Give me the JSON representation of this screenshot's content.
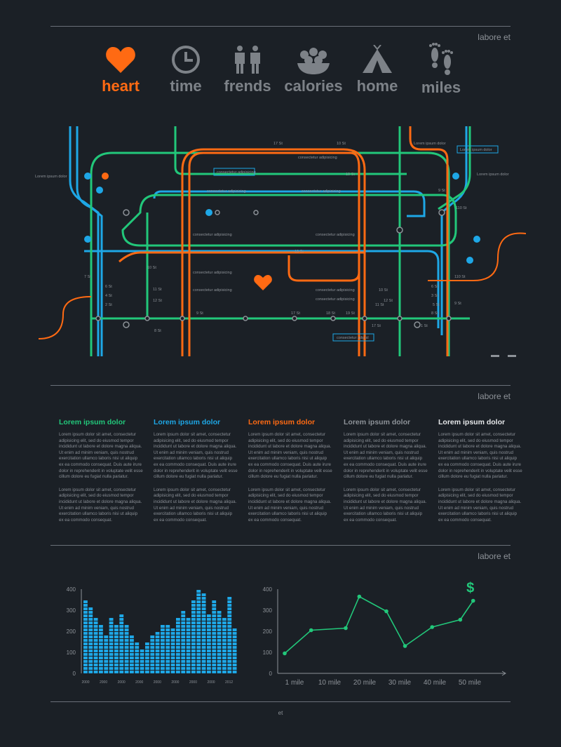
{
  "header": {
    "label": "labore et"
  },
  "nav": {
    "items": [
      {
        "label": "heart",
        "icon": "heart-icon",
        "color": "#ff6a13"
      },
      {
        "label": "time",
        "icon": "clock-icon",
        "color": "#7d8288"
      },
      {
        "label": "frends",
        "icon": "friends-icon",
        "color": "#7d8288"
      },
      {
        "label": "calories",
        "icon": "food-bowl-icon",
        "color": "#7d8288"
      },
      {
        "label": "home",
        "icon": "tent-icon",
        "color": "#7d8288"
      },
      {
        "label": "miles",
        "icon": "footprints-icon",
        "color": "#7d8288"
      }
    ]
  },
  "map": {
    "colors": {
      "blue": "#1ea7e6",
      "green": "#22c77a",
      "orange": "#ff6a13",
      "label": "#8d9298"
    },
    "boxes": [
      "Lorem ipsum dolor",
      "consectetur adipisicing",
      "consectetur adipisl"
    ],
    "labels": {
      "top_left": "Lorem ipsum dolor",
      "top_right": "Lorem ipsum dolor",
      "far_left": "Lorem ipsum dolor",
      "far_right": "Lorem ipsum dolor",
      "ca1": "consectetur adipisicing",
      "ca2": "consectetur adipisicing",
      "ca3": "consectetur adipisicing",
      "ca4": "consectetur adipisicing",
      "ca5": "consectetur adipisicing",
      "ca6": "consectetur adipisicing",
      "ca7": "consectetur adipisicing",
      "ca8": "consectetur adipisicing",
      "ca9": "consectetur adipisicing",
      "st10": "10 St",
      "st11": "11 St",
      "st12": "12 St",
      "st17": "17 St",
      "st18": "18 St",
      "st19": "19 St",
      "st9": "9 St",
      "st8": "8 St",
      "st7": "7 St",
      "st6": "6 St",
      "st5": "5 St",
      "st4": "4 St",
      "st3": "3 St",
      "st2": "2 St",
      "st1": "1 St",
      "st110": "110 St"
    }
  },
  "section2": {
    "label": "labore et",
    "columns": [
      {
        "title": "Lorem ipsum dolor",
        "color": "#22c77a",
        "p1": "Lorem ipsum dolor sit amet, consectetur adipisicing elit, sed do eiusmod tempor incididunt ut labore et dolore magna aliqua. Ut enim ad minim veniam, quis nostrud exercitation ullamco laboris nisi ut aliquip ex ea commodo consequat. Duis aute irure dolor in reprehenderit in voluptate velit esse cillum dolore eu fugiat nulla pariatur.",
        "p2": "Lorem ipsum dolor sit amet, consectetur adipisicing elit, sed do eiusmod tempor incididunt ut labore et dolore magna aliqua. Ut enim ad minim veniam, quis nostrud exercitation ullamco laboris nisi ut aliquip ex ea commodo consequat."
      },
      {
        "title": "Lorem ipsum dolor",
        "color": "#1ea7e6",
        "p1": "Lorem ipsum dolor sit amet, consectetur adipisicing elit, sed do eiusmod tempor incididunt ut labore et dolore magna aliqua. Ut enim ad minim veniam, quis nostrud exercitation ullamco laboris nisi ut aliquip ex ea commodo consequat. Duis aute irure dolor in reprehenderit in voluptate velit esse cillum dolore eu fugiat nulla pariatur.",
        "p2": "Lorem ipsum dolor sit amet, consectetur adipisicing elit, sed do eiusmod tempor incididunt ut labore et dolore magna aliqua. Ut enim ad minim veniam, quis nostrud exercitation ullamco laboris nisi ut aliquip ex ea commodo consequat."
      },
      {
        "title": "Lorem ipsum dolor",
        "color": "#ff6a13",
        "p1": "Lorem ipsum dolor sit amet, consectetur adipisicing elit, sed do eiusmod tempor incididunt ut labore et dolore magna aliqua. Ut enim ad minim veniam, quis nostrud exercitation ullamco laboris nisi ut aliquip ex ea commodo consequat. Duis aute irure dolor in reprehenderit in voluptate velit esse cillum dolore eu fugiat nulla pariatur.",
        "p2": "Lorem ipsum dolor sit amet, consectetur adipisicing elit, sed do eiusmod tempor incididunt ut labore et dolore magna aliqua. Ut enim ad minim veniam, quis nostrud exercitation ullamco laboris nisi ut aliquip ex ea commodo consequat."
      },
      {
        "title": "Lorem ipsum dolor",
        "color": "#8d9298",
        "p1": "Lorem ipsum dolor sit amet, consectetur adipisicing elit, sed do eiusmod tempor incididunt ut labore et dolore magna aliqua. Ut enim ad minim veniam, quis nostrud exercitation ullamco laboris nisi ut aliquip ex ea commodo consequat. Duis aute irure dolor in reprehenderit in voluptate velit esse cillum dolore eu fugiat nulla pariatur.",
        "p2": "Lorem ipsum dolor sit amet, consectetur adipisicing elit, sed do eiusmod tempor incididunt ut labore et dolore magna aliqua. Ut enim ad minim veniam, quis nostrud exercitation ullamco laboris nisi ut aliquip ex ea commodo consequat."
      },
      {
        "title": "Lorem ipsum dolor",
        "color": "#e6e8ea",
        "p1": "Lorem ipsum dolor sit amet, consectetur adipisicing elit, sed do eiusmod tempor incididunt ut labore et dolore magna aliqua. Ut enim ad minim veniam, quis nostrud exercitation ullamco laboris nisi ut aliquip ex ea commodo consequat. Duis aute irure dolor in reprehenderit in voluptate velit esse cillum dolore eu fugiat nulla pariatur.",
        "p2": "Lorem ipsum dolor sit amet, consectetur adipisicing elit, sed do eiusmod tempor incididunt ut labore et dolore magna aliqua. Ut enim ad minim veniam, quis nostrud exercitation ullamco laboris nisi ut aliquip ex ea commodo consequat."
      }
    ]
  },
  "section3": {
    "label": "labore et"
  },
  "footer": {
    "label": "et"
  },
  "chart_data": [
    {
      "type": "bar",
      "title": "",
      "xlabel": "",
      "ylabel": "",
      "ylim": [
        0,
        400
      ],
      "yticks": [
        0,
        100,
        200,
        300,
        400
      ],
      "xtick_labels": [
        "2000",
        "2000",
        "2000",
        "2000",
        "2000",
        "2000",
        "2000",
        "2000",
        "2012"
      ],
      "values": [
        350,
        320,
        260,
        240,
        185,
        260,
        240,
        290,
        240,
        180,
        145,
        110,
        150,
        185,
        200,
        230,
        230,
        210,
        260,
        300,
        270,
        350,
        400,
        380,
        290,
        350,
        300,
        270,
        370,
        210
      ],
      "color": "#1ea7e6",
      "grid": false
    },
    {
      "type": "line",
      "title": "",
      "xlabel": "",
      "ylabel": "",
      "ylim": [
        0,
        400
      ],
      "yticks": [
        0,
        100,
        200,
        300,
        400
      ],
      "xtick_labels": [
        "1 mile",
        "10 mile",
        "20 mile",
        "30 mile",
        "40 mile",
        "50 mile"
      ],
      "x": [
        0,
        7.8,
        18.0,
        22.0,
        30.0,
        35.5,
        43.5,
        51.8,
        55.6
      ],
      "values": [
        95,
        205,
        215,
        365,
        295,
        130,
        220,
        255,
        345
      ],
      "annotation": "$",
      "color": "#22c77a",
      "grid": false
    }
  ]
}
